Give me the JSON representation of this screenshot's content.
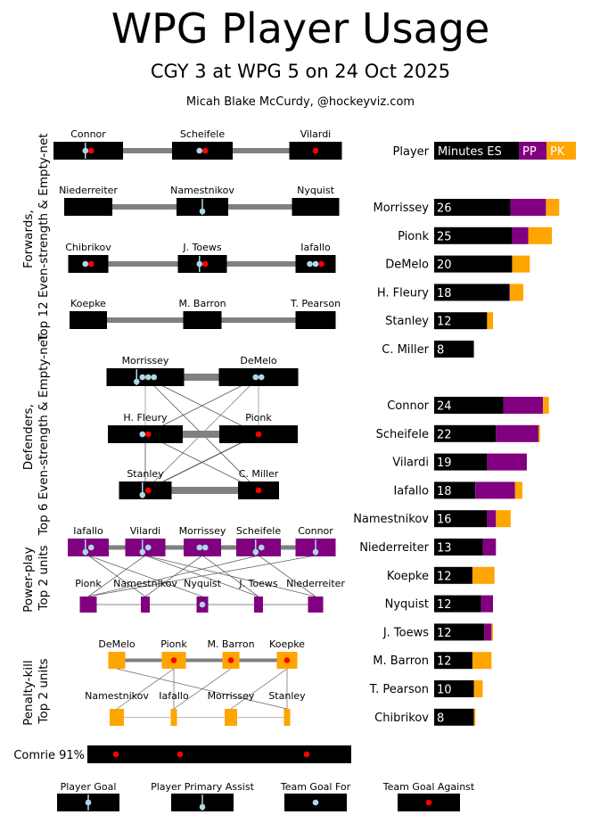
{
  "header": {
    "title": "WPG Player Usage",
    "subtitle": "CGY 3 at WPG 5 on 24 Oct 2025",
    "author": "Micah Blake McCurdy, @hockeyviz.com"
  },
  "colors": {
    "es": "#000000",
    "pp": "#800080",
    "pk": "#ffa500",
    "team_goal_for": "#add8e6",
    "team_goal_against": "#ff0000",
    "link": "#808080"
  },
  "chart_data": {
    "type": "bar",
    "title": "WPG Player Usage",
    "legend": {
      "player": "Player",
      "es": "Minutes ES",
      "pp": "PP",
      "pk": "PK"
    },
    "series_names": [
      "ES",
      "PP",
      "PK"
    ],
    "defenders": [
      {
        "name": "Morrissey",
        "label": "26",
        "es": 26.0,
        "pp": 12.0,
        "pk": 4.5
      },
      {
        "name": "Pionk",
        "label": "25",
        "es": 26.5,
        "pp": 5.5,
        "pk": 8.0
      },
      {
        "name": "DeMelo",
        "label": "20",
        "es": 26.5,
        "pp": 0,
        "pk": 6.0
      },
      {
        "name": "H. Fleury",
        "label": "18",
        "es": 25.5,
        "pp": 0.3,
        "pk": 4.5
      },
      {
        "name": "Stanley",
        "label": "12",
        "es": 18.0,
        "pp": 0,
        "pk": 2.0
      },
      {
        "name": "C. Miller",
        "label": "8",
        "es": 13.5,
        "pp": 0,
        "pk": 0
      }
    ],
    "forwards": [
      {
        "name": "Connor",
        "label": "24",
        "es": 23.5,
        "pp": 13.5,
        "pk": 2.0
      },
      {
        "name": "Scheifele",
        "label": "22",
        "es": 21.0,
        "pp": 14.5,
        "pk": 0.5
      },
      {
        "name": "Vilardi",
        "label": "19",
        "es": 18.0,
        "pp": 13.5,
        "pk": 0
      },
      {
        "name": "Iafallo",
        "label": "18",
        "es": 14.0,
        "pp": 13.5,
        "pk": 2.5
      },
      {
        "name": "Namestnikov",
        "label": "16",
        "es": 18.0,
        "pp": 3.0,
        "pk": 5.0
      },
      {
        "name": "Niederreiter",
        "label": "13",
        "es": 16.5,
        "pp": 4.5,
        "pk": 0
      },
      {
        "name": "Koepke",
        "label": "12",
        "es": 13.0,
        "pp": 0,
        "pk": 7.5
      },
      {
        "name": "Nyquist",
        "label": "12",
        "es": 16.0,
        "pp": 4.0,
        "pk": 0
      },
      {
        "name": "J. Toews",
        "label": "12",
        "es": 17.0,
        "pp": 2.5,
        "pk": 0.5
      },
      {
        "name": "M. Barron",
        "label": "12",
        "es": 13.0,
        "pp": 0,
        "pk": 6.5
      },
      {
        "name": "T. Pearson",
        "label": "10",
        "es": 13.5,
        "pp": 0,
        "pk": 3.0
      },
      {
        "name": "Chibrikov",
        "label": "8",
        "es": 13.5,
        "pp": 0,
        "pk": 0.5
      }
    ]
  },
  "sections": {
    "forwards": "Forwards, Top 12 Even-strength & Empty-net",
    "defenders": "Defenders, Top 6 Even-strength & Empty-net",
    "powerplay": "Power-play Top 2 units",
    "penaltykill": "Penalty-kill Top 2 units"
  },
  "forward_lines": [
    {
      "players": [
        {
          "name": "Connor",
          "goals": 1,
          "assists": 0,
          "gf": 0,
          "ga": 1
        },
        {
          "name": "Scheifele",
          "goals": 0,
          "assists": 0,
          "gf": 1,
          "ga": 1
        },
        {
          "name": "Vilardi",
          "goals": 0,
          "assists": 0,
          "gf": 0,
          "ga": 1
        }
      ]
    },
    {
      "players": [
        {
          "name": "Niederreiter",
          "goals": 0,
          "assists": 0,
          "gf": 0,
          "ga": 0
        },
        {
          "name": "Namestnikov",
          "goals": 0,
          "assists": 1,
          "gf": 0,
          "ga": 0
        },
        {
          "name": "Nyquist",
          "goals": 0,
          "assists": 0,
          "gf": 0,
          "ga": 0
        }
      ]
    },
    {
      "players": [
        {
          "name": "Chibrikov",
          "goals": 0,
          "assists": 0,
          "gf": 1,
          "ga": 1
        },
        {
          "name": "J. Toews",
          "goals": 1,
          "assists": 0,
          "gf": 0,
          "ga": 1
        },
        {
          "name": "Iafallo",
          "goals": 0,
          "assists": 0,
          "gf": 2,
          "ga": 1
        }
      ]
    },
    {
      "players": [
        {
          "name": "Koepke",
          "goals": 0,
          "assists": 0,
          "gf": 0,
          "ga": 0
        },
        {
          "name": "M. Barron",
          "goals": 0,
          "assists": 0,
          "gf": 0,
          "ga": 0
        },
        {
          "name": "T. Pearson",
          "goals": 0,
          "assists": 0,
          "gf": 0,
          "ga": 0
        }
      ]
    }
  ],
  "defense_pairs": [
    {
      "players": [
        {
          "name": "Morrissey",
          "goals": 0,
          "assists": 1,
          "gf": 3,
          "ga": 0
        },
        {
          "name": "DeMelo",
          "goals": 0,
          "assists": 0,
          "gf": 2,
          "ga": 0
        }
      ]
    },
    {
      "players": [
        {
          "name": "H. Fleury",
          "goals": 0,
          "assists": 0,
          "gf": 1,
          "ga": 1
        },
        {
          "name": "Pionk",
          "goals": 0,
          "assists": 0,
          "gf": 0,
          "ga": 1
        }
      ]
    },
    {
      "players": [
        {
          "name": "Stanley",
          "goals": 0,
          "assists": 1,
          "gf": 0,
          "ga": 1
        },
        {
          "name": "C. Miller",
          "goals": 0,
          "assists": 0,
          "gf": 0,
          "ga": 1
        }
      ]
    }
  ],
  "powerplay": {
    "unit1": [
      {
        "name": "Iafallo",
        "goals": 0,
        "assists": 1,
        "gf": 1,
        "ga": 0
      },
      {
        "name": "Vilardi",
        "goals": 0,
        "assists": 1,
        "gf": 1,
        "ga": 0
      },
      {
        "name": "Morrissey",
        "goals": 0,
        "assists": 0,
        "gf": 2,
        "ga": 0
      },
      {
        "name": "Scheifele",
        "goals": 0,
        "assists": 1,
        "gf": 1,
        "ga": 0
      },
      {
        "name": "Connor",
        "goals": 0,
        "assists": 1,
        "gf": 0,
        "ga": 0
      }
    ],
    "unit2": [
      {
        "name": "Pionk",
        "goals": 0,
        "assists": 0,
        "gf": 0,
        "ga": 0
      },
      {
        "name": "Namestnikov",
        "goals": 0,
        "assists": 0,
        "gf": 0,
        "ga": 0
      },
      {
        "name": "Nyquist",
        "goals": 0,
        "assists": 0,
        "gf": 1,
        "ga": 0
      },
      {
        "name": "J. Toews",
        "goals": 0,
        "assists": 0,
        "gf": 0,
        "ga": 0
      },
      {
        "name": "Niederreiter",
        "goals": 0,
        "assists": 0,
        "gf": 0,
        "ga": 0
      }
    ]
  },
  "penaltykill": {
    "unit1": [
      {
        "name": "DeMelo",
        "goals": 0,
        "assists": 0,
        "gf": 0,
        "ga": 0
      },
      {
        "name": "Pionk",
        "goals": 0,
        "assists": 0,
        "gf": 0,
        "ga": 1
      },
      {
        "name": "M. Barron",
        "goals": 0,
        "assists": 0,
        "gf": 0,
        "ga": 1
      },
      {
        "name": "Koepke",
        "goals": 0,
        "assists": 0,
        "gf": 0,
        "ga": 1
      }
    ],
    "unit2": [
      {
        "name": "Namestnikov",
        "goals": 0,
        "assists": 0,
        "gf": 0,
        "ga": 0
      },
      {
        "name": "Iafallo",
        "goals": 0,
        "assists": 0,
        "gf": 0,
        "ga": 0
      },
      {
        "name": "Morrissey",
        "goals": 0,
        "assists": 0,
        "gf": 0,
        "ga": 0
      },
      {
        "name": "Stanley",
        "goals": 0,
        "assists": 0,
        "gf": 0,
        "ga": 0
      }
    ]
  },
  "goalie": {
    "label": "Comrie 91%",
    "goals_against": 3
  },
  "key": {
    "player_goal": "Player Goal",
    "primary_assist": "Player Primary Assist",
    "team_goal_for": "Team Goal For",
    "team_goal_against": "Team Goal Against"
  }
}
